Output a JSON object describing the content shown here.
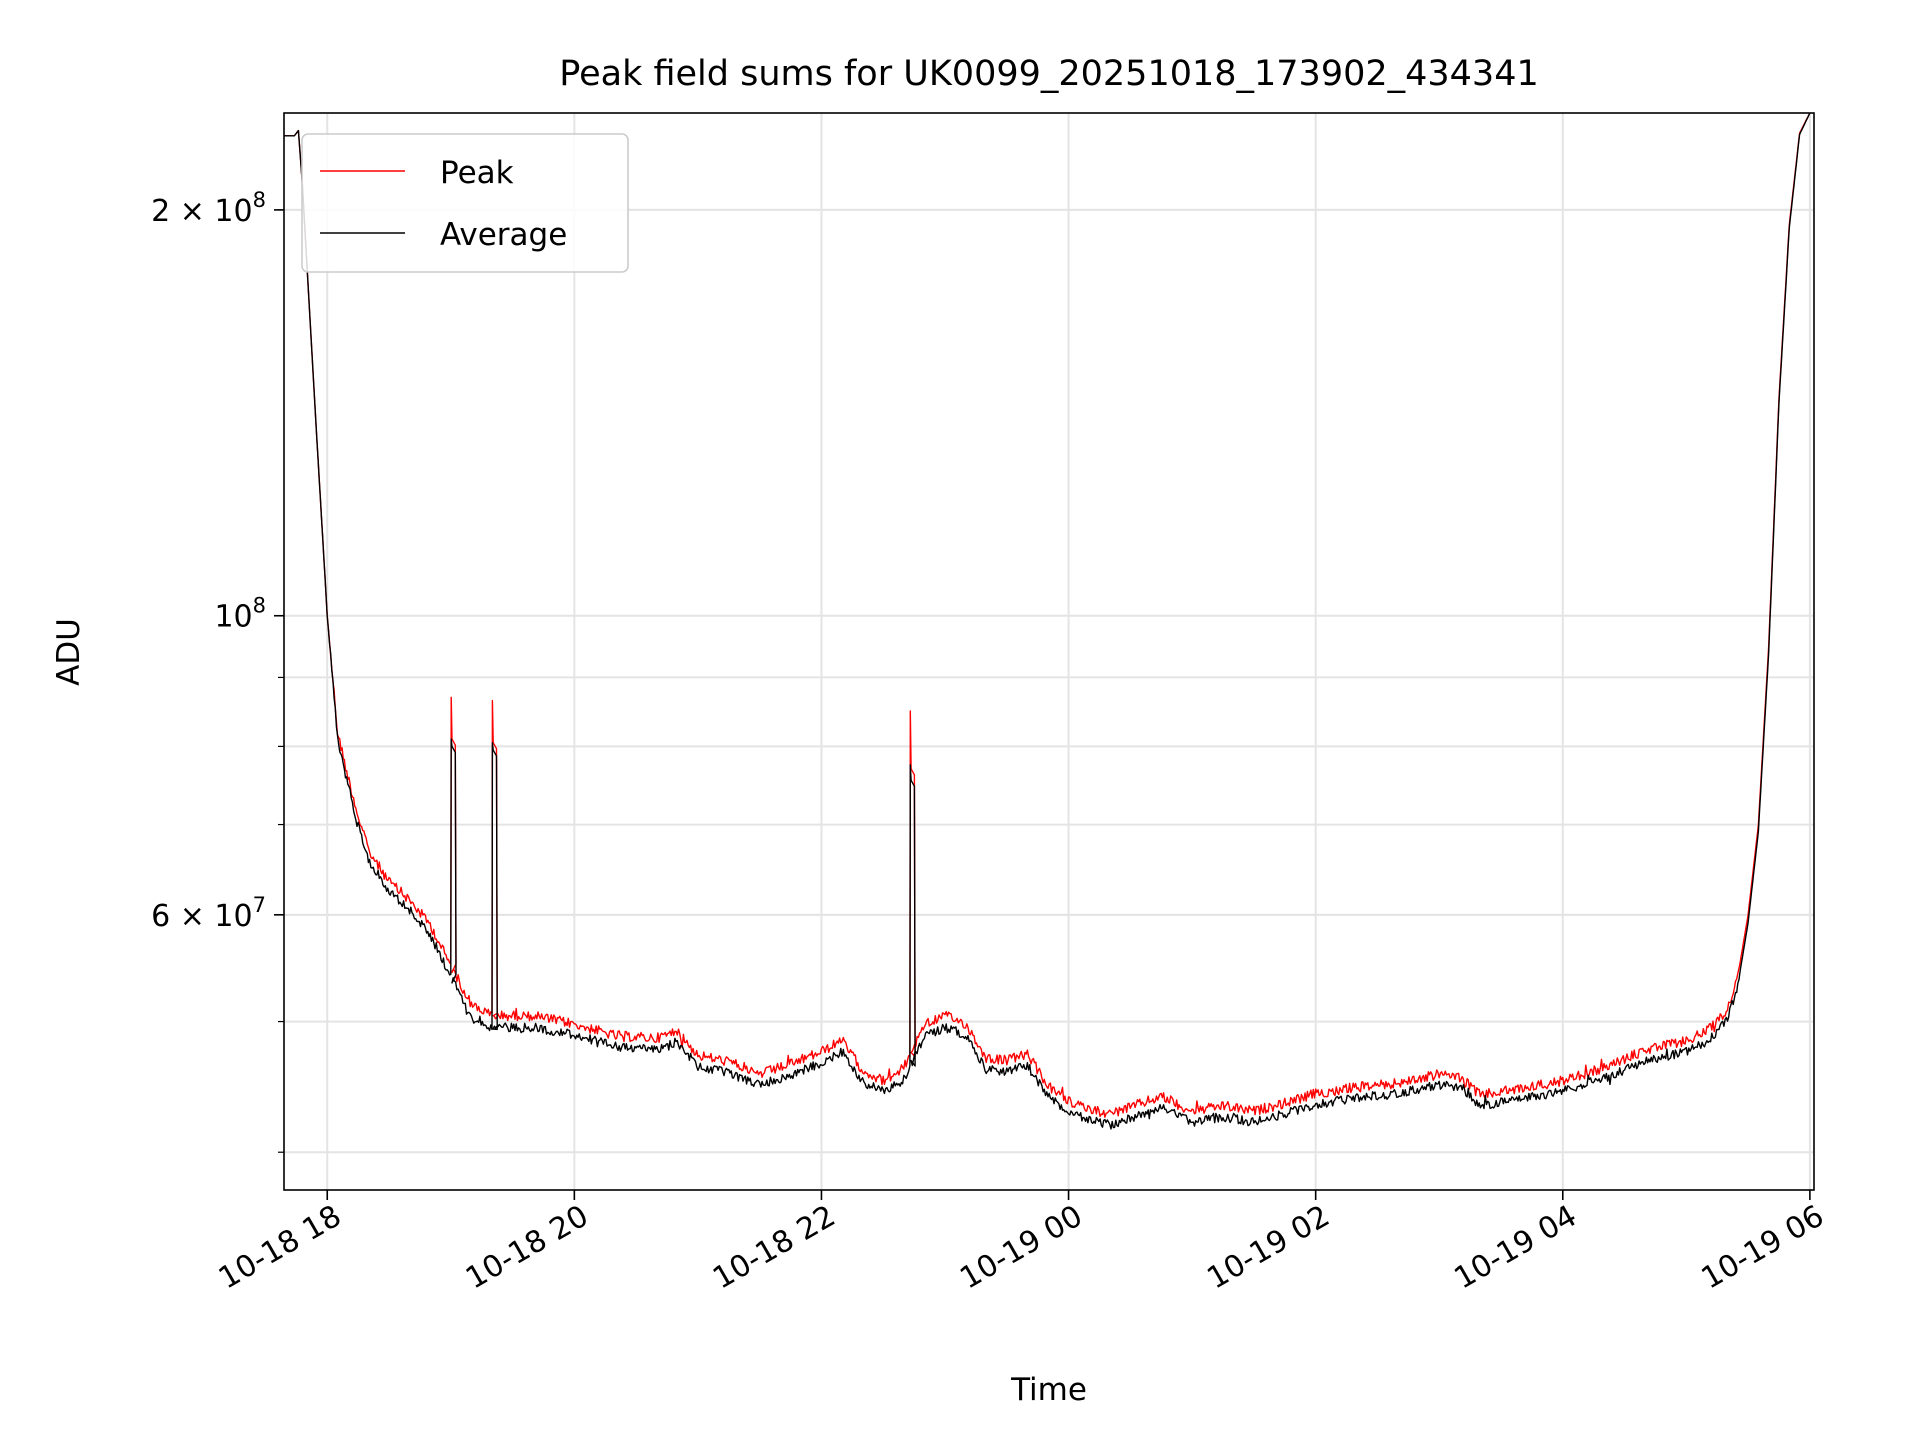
{
  "chart_data": {
    "type": "line",
    "title": "Peak field sums for UK0099_20251018_173902_434341",
    "xlabel": "Time",
    "ylabel": "ADU",
    "yscale": "log",
    "ylim": [
      37500000,
      236000000
    ],
    "xlim": [
      "2025-10-18 17:39",
      "2025-10-19 06:02"
    ],
    "x_ticks": [
      {
        "x": "2025-10-18 18:00",
        "label": "10-18 18"
      },
      {
        "x": "2025-10-18 20:00",
        "label": "10-18 20"
      },
      {
        "x": "2025-10-18 22:00",
        "label": "10-18 22"
      },
      {
        "x": "2025-10-19 00:00",
        "label": "10-19 00"
      },
      {
        "x": "2025-10-19 02:00",
        "label": "10-19 02"
      },
      {
        "x": "2025-10-19 04:00",
        "label": "10-19 04"
      },
      {
        "x": "2025-10-19 06:00",
        "label": "10-19 06"
      }
    ],
    "y_major_ticks": [
      {
        "y": 100000000,
        "base": "10",
        "exp": "8"
      },
      {
        "y": 200000000,
        "base": "2 × 10",
        "exp": "8"
      },
      {
        "y": 60000000,
        "base": "6 × 10",
        "exp": "7"
      }
    ],
    "y_minor_ticks": [
      40000000,
      50000000,
      60000000,
      70000000,
      80000000,
      90000000,
      200000000
    ],
    "grid": true,
    "legend_position": "upper-left",
    "series": [
      {
        "name": "Peak",
        "color": "#ff0000",
        "points": [
          [
            "2025-10-18 17:39",
            227000000
          ],
          [
            "2025-10-18 17:44",
            227000000
          ],
          [
            "2025-10-18 17:46",
            229000000
          ],
          [
            "2025-10-18 17:48",
            208000000
          ],
          [
            "2025-10-18 17:55",
            135000000
          ],
          [
            "2025-10-18 18:00",
            100000000
          ],
          [
            "2025-10-18 18:05",
            82000000
          ],
          [
            "2025-10-18 18:10",
            76000000
          ],
          [
            "2025-10-18 18:15",
            71000000
          ],
          [
            "2025-10-18 18:20",
            67000000
          ],
          [
            "2025-10-18 18:30",
            63500000
          ],
          [
            "2025-10-18 18:40",
            61500000
          ],
          [
            "2025-10-18 18:50",
            59000000
          ],
          [
            "2025-10-18 19:00",
            55000000
          ],
          [
            "2025-10-18 19:10",
            51500000
          ],
          [
            "2025-10-18 19:20",
            50500000
          ],
          [
            "2025-10-18 19:40",
            50500000
          ],
          [
            "2025-10-18 20:00",
            49800000
          ],
          [
            "2025-10-18 20:20",
            48800000
          ],
          [
            "2025-10-18 20:40",
            48600000
          ],
          [
            "2025-10-18 20:50",
            49200000
          ],
          [
            "2025-10-18 21:00",
            47200000
          ],
          [
            "2025-10-18 21:15",
            46700000
          ],
          [
            "2025-10-18 21:30",
            45700000
          ],
          [
            "2025-10-18 21:45",
            46500000
          ],
          [
            "2025-10-18 22:00",
            47500000
          ],
          [
            "2025-10-18 22:10",
            48400000
          ],
          [
            "2025-10-18 22:20",
            46000000
          ],
          [
            "2025-10-18 22:30",
            45200000
          ],
          [
            "2025-10-18 22:40",
            46200000
          ],
          [
            "2025-10-18 22:50",
            49800000
          ],
          [
            "2025-10-18 23:00",
            50500000
          ],
          [
            "2025-10-18 23:10",
            49800000
          ],
          [
            "2025-10-18 23:20",
            47000000
          ],
          [
            "2025-10-18 23:30",
            46800000
          ],
          [
            "2025-10-18 23:40",
            47300000
          ],
          [
            "2025-10-18 23:50",
            44800000
          ],
          [
            "2025-10-19 00:00",
            43600000
          ],
          [
            "2025-10-19 00:10",
            43100000
          ],
          [
            "2025-10-19 00:20",
            42700000
          ],
          [
            "2025-10-19 00:30",
            43200000
          ],
          [
            "2025-10-19 00:45",
            44000000
          ],
          [
            "2025-10-19 01:00",
            42900000
          ],
          [
            "2025-10-19 01:15",
            43300000
          ],
          [
            "2025-10-19 01:30",
            42900000
          ],
          [
            "2025-10-19 01:45",
            43500000
          ],
          [
            "2025-10-19 02:00",
            44200000
          ],
          [
            "2025-10-19 02:20",
            44700000
          ],
          [
            "2025-10-19 02:40",
            45000000
          ],
          [
            "2025-10-19 03:00",
            45700000
          ],
          [
            "2025-10-19 03:10",
            45500000
          ],
          [
            "2025-10-19 03:20",
            44100000
          ],
          [
            "2025-10-19 03:40",
            44600000
          ],
          [
            "2025-10-19 04:00",
            45200000
          ],
          [
            "2025-10-19 04:20",
            46200000
          ],
          [
            "2025-10-19 04:40",
            47600000
          ],
          [
            "2025-10-19 05:00",
            48400000
          ],
          [
            "2025-10-19 05:10",
            49200000
          ],
          [
            "2025-10-19 05:20",
            51000000
          ],
          [
            "2025-10-19 05:25",
            54000000
          ],
          [
            "2025-10-19 05:30",
            60000000
          ],
          [
            "2025-10-19 05:35",
            70000000
          ],
          [
            "2025-10-19 05:40",
            95000000
          ],
          [
            "2025-10-19 05:45",
            145000000
          ],
          [
            "2025-10-19 05:50",
            195000000
          ],
          [
            "2025-10-19 05:55",
            228000000
          ],
          [
            "2025-10-19 06:00",
            236000000
          ]
        ],
        "spikes": [
          {
            "x": "2025-10-18 19:00",
            "peak": 87000000,
            "plateau": 81000000
          },
          {
            "x": "2025-10-18 19:20",
            "peak": 86500000,
            "plateau": 80500000
          },
          {
            "x": "2025-10-18 22:43",
            "peak": 85000000,
            "plateau": 77000000
          }
        ]
      },
      {
        "name": "Average",
        "color": "#000000",
        "points": [
          [
            "2025-10-18 17:39",
            227000000
          ],
          [
            "2025-10-18 17:44",
            227000000
          ],
          [
            "2025-10-18 17:46",
            229000000
          ],
          [
            "2025-10-18 17:48",
            208000000
          ],
          [
            "2025-10-18 17:55",
            135000000
          ],
          [
            "2025-10-18 18:00",
            100000000
          ],
          [
            "2025-10-18 18:05",
            81000000
          ],
          [
            "2025-10-18 18:10",
            75000000
          ],
          [
            "2025-10-18 18:15",
            70000000
          ],
          [
            "2025-10-18 18:20",
            66000000
          ],
          [
            "2025-10-18 18:30",
            62500000
          ],
          [
            "2025-10-18 18:40",
            60500000
          ],
          [
            "2025-10-18 18:50",
            58000000
          ],
          [
            "2025-10-18 19:00",
            54000000
          ],
          [
            "2025-10-18 19:10",
            50500000
          ],
          [
            "2025-10-18 19:20",
            49500000
          ],
          [
            "2025-10-18 19:40",
            49500000
          ],
          [
            "2025-10-18 20:00",
            48900000
          ],
          [
            "2025-10-18 20:20",
            47900000
          ],
          [
            "2025-10-18 20:40",
            47700000
          ],
          [
            "2025-10-18 20:50",
            48300000
          ],
          [
            "2025-10-18 21:00",
            46300000
          ],
          [
            "2025-10-18 21:15",
            45800000
          ],
          [
            "2025-10-18 21:30",
            44900000
          ],
          [
            "2025-10-18 21:45",
            45600000
          ],
          [
            "2025-10-18 22:00",
            46600000
          ],
          [
            "2025-10-18 22:10",
            47500000
          ],
          [
            "2025-10-18 22:20",
            45100000
          ],
          [
            "2025-10-18 22:30",
            44400000
          ],
          [
            "2025-10-18 22:40",
            45300000
          ],
          [
            "2025-10-18 22:50",
            48800000
          ],
          [
            "2025-10-18 23:00",
            49500000
          ],
          [
            "2025-10-18 23:10",
            48900000
          ],
          [
            "2025-10-18 23:20",
            46100000
          ],
          [
            "2025-10-18 23:30",
            45900000
          ],
          [
            "2025-10-18 23:40",
            46400000
          ],
          [
            "2025-10-18 23:50",
            44000000
          ],
          [
            "2025-10-19 00:00",
            42800000
          ],
          [
            "2025-10-19 00:10",
            42300000
          ],
          [
            "2025-10-19 00:20",
            41900000
          ],
          [
            "2025-10-19 00:30",
            42400000
          ],
          [
            "2025-10-19 00:45",
            43200000
          ],
          [
            "2025-10-19 01:00",
            42100000
          ],
          [
            "2025-10-19 01:15",
            42500000
          ],
          [
            "2025-10-19 01:30",
            42100000
          ],
          [
            "2025-10-19 01:45",
            42700000
          ],
          [
            "2025-10-19 02:00",
            43400000
          ],
          [
            "2025-10-19 02:20",
            43900000
          ],
          [
            "2025-10-19 02:40",
            44200000
          ],
          [
            "2025-10-19 03:00",
            44900000
          ],
          [
            "2025-10-19 03:10",
            44700000
          ],
          [
            "2025-10-19 03:20",
            43300000
          ],
          [
            "2025-10-19 03:40",
            43800000
          ],
          [
            "2025-10-19 04:00",
            44400000
          ],
          [
            "2025-10-19 04:20",
            45400000
          ],
          [
            "2025-10-19 04:40",
            46700000
          ],
          [
            "2025-10-19 05:00",
            47500000
          ],
          [
            "2025-10-19 05:10",
            48300000
          ],
          [
            "2025-10-19 05:20",
            50200000
          ],
          [
            "2025-10-19 05:25",
            53200000
          ],
          [
            "2025-10-19 05:30",
            59200000
          ],
          [
            "2025-10-19 05:35",
            69200000
          ],
          [
            "2025-10-19 05:40",
            94000000
          ],
          [
            "2025-10-19 05:45",
            144000000
          ],
          [
            "2025-10-19 05:50",
            194000000
          ],
          [
            "2025-10-19 05:55",
            227500000
          ],
          [
            "2025-10-19 06:00",
            236000000
          ]
        ],
        "spikes": [
          {
            "x": "2025-10-18 19:00",
            "peak": 81000000,
            "plateau": 80000000
          },
          {
            "x": "2025-10-18 19:20",
            "peak": 80500000,
            "plateau": 79500000
          },
          {
            "x": "2025-10-18 22:43",
            "peak": 77500000,
            "plateau": 75500000
          }
        ]
      }
    ]
  }
}
